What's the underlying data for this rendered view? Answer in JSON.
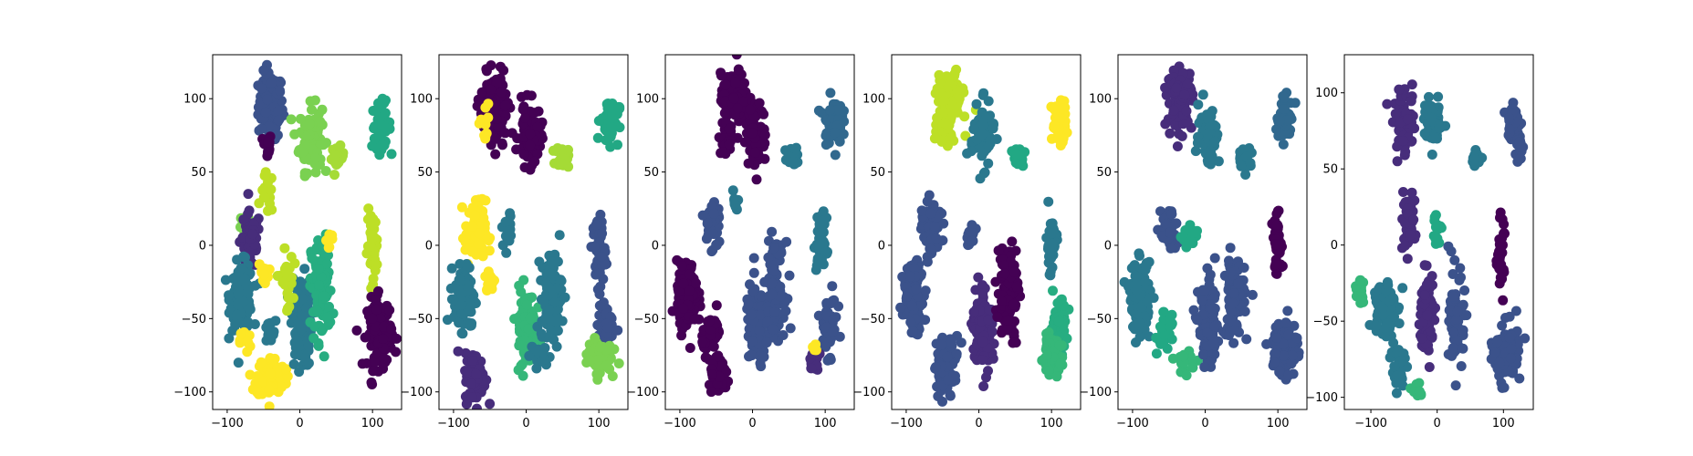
{
  "chart_data": [
    {
      "type": "scatter",
      "xlim": [
        -120,
        140
      ],
      "ylim": [
        -112,
        130
      ],
      "xticks": [
        -100,
        0,
        100
      ],
      "yticks": [
        -100,
        -50,
        0,
        50,
        100
      ],
      "xtick_labels": [
        "−100",
        "0",
        "100"
      ],
      "ytick_labels": [
        "−100",
        "−50",
        "0",
        "50",
        "100"
      ],
      "grid": false,
      "colormap": "viridis",
      "clusters": [
        {
          "x": -40,
          "y": 95,
          "sx": 12,
          "sy": 16,
          "n": 120,
          "color": "#3b528b"
        },
        {
          "x": -45,
          "y": 68,
          "sx": 4,
          "sy": 6,
          "n": 15,
          "color": "#440154"
        },
        {
          "x": 15,
          "y": 73,
          "sx": 11,
          "sy": 16,
          "n": 110,
          "color": "#7ad151"
        },
        {
          "x": 52,
          "y": 60,
          "sx": 6,
          "sy": 5,
          "n": 30,
          "color": "#a5db36"
        },
        {
          "x": 112,
          "y": 82,
          "sx": 9,
          "sy": 11,
          "n": 60,
          "color": "#22a884"
        },
        {
          "x": -75,
          "y": 15,
          "sx": 6,
          "sy": 6,
          "n": 15,
          "color": "#7ad151"
        },
        {
          "x": -68,
          "y": 3,
          "sx": 10,
          "sy": 14,
          "n": 60,
          "color": "#472d7b"
        },
        {
          "x": -45,
          "y": 35,
          "sx": 6,
          "sy": 10,
          "n": 15,
          "color": "#bddf26"
        },
        {
          "x": -80,
          "y": -35,
          "sx": 11,
          "sy": 16,
          "n": 130,
          "color": "#2a788e"
        },
        {
          "x": -50,
          "y": -18,
          "sx": 5,
          "sy": 5,
          "n": 15,
          "color": "#fde725"
        },
        {
          "x": -42,
          "y": -60,
          "sx": 6,
          "sy": 6,
          "n": 20,
          "color": "#2a788e"
        },
        {
          "x": -75,
          "y": -65,
          "sx": 5,
          "sy": 6,
          "n": 15,
          "color": "#fde725"
        },
        {
          "x": -40,
          "y": -90,
          "sx": 14,
          "sy": 10,
          "n": 110,
          "color": "#fde725"
        },
        {
          "x": 2,
          "y": -52,
          "sx": 10,
          "sy": 22,
          "n": 120,
          "color": "#2a788e"
        },
        {
          "x": 30,
          "y": -30,
          "sx": 10,
          "sy": 25,
          "n": 120,
          "color": "#27ad81"
        },
        {
          "x": -18,
          "y": -25,
          "sx": 6,
          "sy": 15,
          "n": 30,
          "color": "#bddf26"
        },
        {
          "x": 100,
          "y": 0,
          "sx": 5,
          "sy": 16,
          "n": 60,
          "color": "#bddf26"
        },
        {
          "x": 110,
          "y": -60,
          "sx": 12,
          "sy": 17,
          "n": 120,
          "color": "#440154"
        },
        {
          "x": 40,
          "y": 5,
          "sx": 4,
          "sy": 4,
          "n": 8,
          "color": "#fde725"
        }
      ]
    },
    {
      "type": "scatter",
      "xlim": [
        -120,
        140
      ],
      "ylim": [
        -112,
        130
      ],
      "xticks": [
        -100,
        0,
        100
      ],
      "yticks": [
        -100,
        -50,
        0,
        50,
        100
      ],
      "xtick_labels": [
        "−100",
        "0",
        "100"
      ],
      "ytick_labels": [
        "−100",
        "−50",
        "0",
        "50",
        "100"
      ],
      "grid": false,
      "colormap": "viridis",
      "clusters": [
        {
          "x": -45,
          "y": 100,
          "sx": 12,
          "sy": 12,
          "n": 110,
          "color": "#440154"
        },
        {
          "x": -40,
          "y": 80,
          "sx": 10,
          "sy": 12,
          "n": 40,
          "color": "#440154"
        },
        {
          "x": 5,
          "y": 75,
          "sx": 11,
          "sy": 15,
          "n": 80,
          "color": "#440154"
        },
        {
          "x": -55,
          "y": 85,
          "sx": 10,
          "sy": 12,
          "n": 10,
          "color": "#fde725"
        },
        {
          "x": 50,
          "y": 60,
          "sx": 6,
          "sy": 5,
          "n": 30,
          "color": "#a5db36"
        },
        {
          "x": 115,
          "y": 85,
          "sx": 9,
          "sy": 11,
          "n": 60,
          "color": "#22a884"
        },
        {
          "x": -70,
          "y": 8,
          "sx": 10,
          "sy": 16,
          "n": 90,
          "color": "#fde725"
        },
        {
          "x": -25,
          "y": 10,
          "sx": 6,
          "sy": 10,
          "n": 20,
          "color": "#2a788e"
        },
        {
          "x": -85,
          "y": -35,
          "sx": 10,
          "sy": 15,
          "n": 120,
          "color": "#2a788e"
        },
        {
          "x": -50,
          "y": -25,
          "sx": 5,
          "sy": 6,
          "n": 15,
          "color": "#fde725"
        },
        {
          "x": -70,
          "y": -90,
          "sx": 10,
          "sy": 12,
          "n": 90,
          "color": "#472d7b"
        },
        {
          "x": 0,
          "y": -55,
          "sx": 10,
          "sy": 18,
          "n": 110,
          "color": "#35b779"
        },
        {
          "x": 35,
          "y": -35,
          "sx": 10,
          "sy": 22,
          "n": 100,
          "color": "#2a788e"
        },
        {
          "x": 100,
          "y": -5,
          "sx": 6,
          "sy": 18,
          "n": 60,
          "color": "#3b528b"
        },
        {
          "x": 110,
          "y": -55,
          "sx": 8,
          "sy": 10,
          "n": 50,
          "color": "#3b528b"
        },
        {
          "x": 100,
          "y": -75,
          "sx": 12,
          "sy": 8,
          "n": 90,
          "color": "#7ad151"
        },
        {
          "x": 20,
          "y": -75,
          "sx": 10,
          "sy": 6,
          "n": 20,
          "color": "#2a788e"
        }
      ]
    },
    {
      "type": "scatter",
      "xlim": [
        -120,
        140
      ],
      "ylim": [
        -112,
        130
      ],
      "xticks": [
        -100,
        0,
        100
      ],
      "yticks": [
        -100,
        -50,
        0,
        50,
        100
      ],
      "xtick_labels": [
        "−100",
        "0",
        "100"
      ],
      "ytick_labels": [
        "−100",
        "−50",
        "0",
        "50",
        "100"
      ],
      "grid": false,
      "colormap": "viridis",
      "clusters": [
        {
          "x": -25,
          "y": 100,
          "sx": 13,
          "sy": 12,
          "n": 120,
          "color": "#440154"
        },
        {
          "x": 5,
          "y": 75,
          "sx": 10,
          "sy": 14,
          "n": 80,
          "color": "#440154"
        },
        {
          "x": -35,
          "y": 75,
          "sx": 8,
          "sy": 10,
          "n": 30,
          "color": "#440154"
        },
        {
          "x": 55,
          "y": 60,
          "sx": 7,
          "sy": 5,
          "n": 30,
          "color": "#2a788e"
        },
        {
          "x": 110,
          "y": 85,
          "sx": 9,
          "sy": 11,
          "n": 60,
          "color": "#31688e"
        },
        {
          "x": -55,
          "y": 15,
          "sx": 8,
          "sy": 14,
          "n": 40,
          "color": "#3b528b"
        },
        {
          "x": -25,
          "y": 30,
          "sx": 5,
          "sy": 6,
          "n": 10,
          "color": "#2a788e"
        },
        {
          "x": -90,
          "y": -35,
          "sx": 10,
          "sy": 16,
          "n": 130,
          "color": "#440154"
        },
        {
          "x": -55,
          "y": -60,
          "sx": 10,
          "sy": 10,
          "n": 40,
          "color": "#440154"
        },
        {
          "x": -45,
          "y": -90,
          "sx": 10,
          "sy": 8,
          "n": 40,
          "color": "#440154"
        },
        {
          "x": 5,
          "y": -55,
          "sx": 10,
          "sy": 20,
          "n": 110,
          "color": "#3b528b"
        },
        {
          "x": 30,
          "y": -30,
          "sx": 10,
          "sy": 22,
          "n": 110,
          "color": "#3b528b"
        },
        {
          "x": 95,
          "y": 0,
          "sx": 5,
          "sy": 14,
          "n": 50,
          "color": "#2a788e"
        },
        {
          "x": 105,
          "y": -55,
          "sx": 8,
          "sy": 14,
          "n": 60,
          "color": "#3b528b"
        },
        {
          "x": 85,
          "y": -80,
          "sx": 6,
          "sy": 6,
          "n": 20,
          "color": "#472d7b"
        },
        {
          "x": 85,
          "y": -70,
          "sx": 3,
          "sy": 3,
          "n": 5,
          "color": "#fde725"
        }
      ]
    },
    {
      "type": "scatter",
      "xlim": [
        -120,
        140
      ],
      "ylim": [
        -112,
        130
      ],
      "xticks": [
        -100,
        0,
        100
      ],
      "yticks": [
        -100,
        -50,
        0,
        50,
        100
      ],
      "xtick_labels": [
        "−100",
        "0",
        "100"
      ],
      "ytick_labels": [
        "−100",
        "−50",
        "0",
        "50",
        "100"
      ],
      "grid": false,
      "colormap": "viridis",
      "clusters": [
        {
          "x": -40,
          "y": 100,
          "sx": 12,
          "sy": 12,
          "n": 110,
          "color": "#bddf26"
        },
        {
          "x": -45,
          "y": 78,
          "sx": 8,
          "sy": 8,
          "n": 30,
          "color": "#bddf26"
        },
        {
          "x": 5,
          "y": 75,
          "sx": 11,
          "sy": 15,
          "n": 90,
          "color": "#2a788e"
        },
        {
          "x": 55,
          "y": 60,
          "sx": 6,
          "sy": 5,
          "n": 30,
          "color": "#22a884"
        },
        {
          "x": 110,
          "y": 85,
          "sx": 7,
          "sy": 10,
          "n": 60,
          "color": "#fde725"
        },
        {
          "x": -65,
          "y": 10,
          "sx": 9,
          "sy": 14,
          "n": 60,
          "color": "#3b528b"
        },
        {
          "x": -90,
          "y": -35,
          "sx": 10,
          "sy": 16,
          "n": 130,
          "color": "#3b528b"
        },
        {
          "x": -45,
          "y": -80,
          "sx": 12,
          "sy": 14,
          "n": 80,
          "color": "#3b528b"
        },
        {
          "x": 5,
          "y": -55,
          "sx": 10,
          "sy": 20,
          "n": 110,
          "color": "#472d7b"
        },
        {
          "x": 40,
          "y": -30,
          "sx": 10,
          "sy": 24,
          "n": 110,
          "color": "#440154"
        },
        {
          "x": 100,
          "y": 0,
          "sx": 5,
          "sy": 14,
          "n": 50,
          "color": "#2a788e"
        },
        {
          "x": 110,
          "y": -55,
          "sx": 8,
          "sy": 12,
          "n": 60,
          "color": "#27ad81"
        },
        {
          "x": 100,
          "y": -75,
          "sx": 10,
          "sy": 8,
          "n": 70,
          "color": "#35b779"
        },
        {
          "x": -10,
          "y": 5,
          "sx": 6,
          "sy": 6,
          "n": 15,
          "color": "#3b528b"
        }
      ]
    },
    {
      "type": "scatter",
      "xlim": [
        -120,
        140
      ],
      "ylim": [
        -112,
        130
      ],
      "xticks": [
        -100,
        0,
        100
      ],
      "yticks": [
        -100,
        -50,
        0,
        50,
        100
      ],
      "xtick_labels": [
        "−100",
        "0",
        "100"
      ],
      "ytick_labels": [
        "−100",
        "−50",
        "0",
        "50",
        "100"
      ],
      "grid": false,
      "colormap": "viridis",
      "clusters": [
        {
          "x": -35,
          "y": 100,
          "sx": 12,
          "sy": 14,
          "n": 120,
          "color": "#472d7b"
        },
        {
          "x": 5,
          "y": 75,
          "sx": 10,
          "sy": 14,
          "n": 80,
          "color": "#2a788e"
        },
        {
          "x": 55,
          "y": 60,
          "sx": 6,
          "sy": 5,
          "n": 30,
          "color": "#2a788e"
        },
        {
          "x": 110,
          "y": 85,
          "sx": 8,
          "sy": 10,
          "n": 60,
          "color": "#31688e"
        },
        {
          "x": -50,
          "y": 10,
          "sx": 8,
          "sy": 12,
          "n": 50,
          "color": "#3b528b"
        },
        {
          "x": -20,
          "y": 5,
          "sx": 8,
          "sy": 6,
          "n": 20,
          "color": "#22a884"
        },
        {
          "x": -90,
          "y": -35,
          "sx": 10,
          "sy": 16,
          "n": 130,
          "color": "#2a788e"
        },
        {
          "x": -55,
          "y": -60,
          "sx": 8,
          "sy": 10,
          "n": 30,
          "color": "#22a884"
        },
        {
          "x": -30,
          "y": -80,
          "sx": 8,
          "sy": 6,
          "n": 20,
          "color": "#35b779"
        },
        {
          "x": 5,
          "y": -55,
          "sx": 10,
          "sy": 20,
          "n": 110,
          "color": "#3b528b"
        },
        {
          "x": 40,
          "y": -35,
          "sx": 10,
          "sy": 20,
          "n": 100,
          "color": "#3b528b"
        },
        {
          "x": 100,
          "y": 0,
          "sx": 5,
          "sy": 14,
          "n": 50,
          "color": "#440154"
        },
        {
          "x": 110,
          "y": -70,
          "sx": 12,
          "sy": 14,
          "n": 100,
          "color": "#3b528b"
        }
      ]
    },
    {
      "type": "scatter",
      "xlim": [
        -140,
        145
      ],
      "ylim": [
        -108,
        125
      ],
      "xticks": [
        -100,
        0,
        100
      ],
      "yticks": [
        -100,
        -50,
        0,
        50,
        100
      ],
      "xtick_labels": [
        "−100",
        "0",
        "100"
      ],
      "ytick_labels": [
        "−100",
        "−50",
        "0",
        "50",
        "100"
      ],
      "grid": false,
      "colormap": "viridis",
      "clusters": [
        {
          "x": -50,
          "y": 80,
          "sx": 12,
          "sy": 15,
          "n": 60,
          "color": "#472d7b"
        },
        {
          "x": -5,
          "y": 80,
          "sx": 10,
          "sy": 10,
          "n": 70,
          "color": "#2a788e"
        },
        {
          "x": 60,
          "y": 57,
          "sx": 6,
          "sy": 3,
          "n": 20,
          "color": "#2a788e"
        },
        {
          "x": 115,
          "y": 80,
          "sx": 8,
          "sy": 8,
          "n": 40,
          "color": "#3b528b"
        },
        {
          "x": 125,
          "y": 65,
          "sx": 3,
          "sy": 8,
          "n": 20,
          "color": "#3b528b"
        },
        {
          "x": -45,
          "y": 15,
          "sx": 8,
          "sy": 12,
          "n": 50,
          "color": "#472d7b"
        },
        {
          "x": 0,
          "y": 10,
          "sx": 5,
          "sy": 8,
          "n": 15,
          "color": "#22a884"
        },
        {
          "x": -115,
          "y": -30,
          "sx": 4,
          "sy": 8,
          "n": 20,
          "color": "#35b779"
        },
        {
          "x": -80,
          "y": -40,
          "sx": 12,
          "sy": 14,
          "n": 90,
          "color": "#2a788e"
        },
        {
          "x": -60,
          "y": -80,
          "sx": 8,
          "sy": 14,
          "n": 40,
          "color": "#2a788e"
        },
        {
          "x": -15,
          "y": -45,
          "sx": 8,
          "sy": 20,
          "n": 70,
          "color": "#472d7b"
        },
        {
          "x": 30,
          "y": -50,
          "sx": 8,
          "sy": 22,
          "n": 70,
          "color": "#3b528b"
        },
        {
          "x": 95,
          "y": -5,
          "sx": 4,
          "sy": 16,
          "n": 40,
          "color": "#440154"
        },
        {
          "x": 105,
          "y": -70,
          "sx": 14,
          "sy": 14,
          "n": 80,
          "color": "#3b528b"
        },
        {
          "x": -30,
          "y": -95,
          "sx": 6,
          "sy": 6,
          "n": 10,
          "color": "#35b779"
        }
      ]
    }
  ]
}
